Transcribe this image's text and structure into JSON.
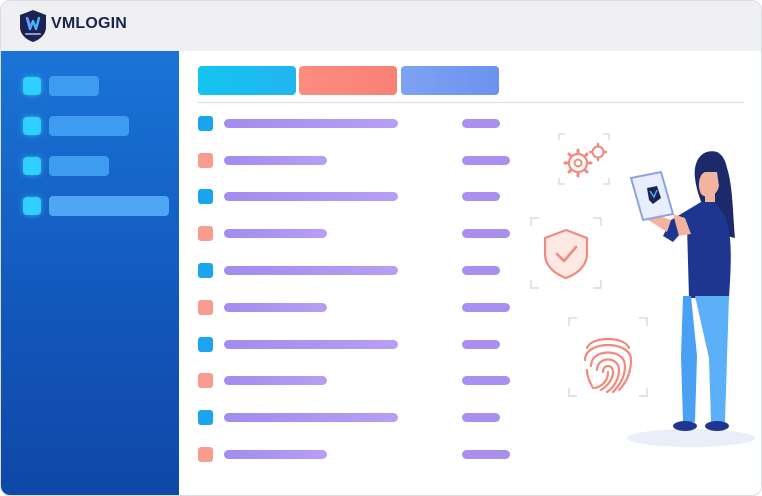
{
  "app": {
    "title": "VMLOGIN",
    "logo_icon": "shield-logo-icon"
  },
  "colors": {
    "sidebar": "#1466c9",
    "accent_cyan": "#17c0ee",
    "accent_coral": "#fa8a7c",
    "accent_periwinkle": "#7399f0",
    "placeholder_lavender": "#a98ff0"
  },
  "sidebar": {
    "items": [
      {
        "name": "sidebar-item-1"
      },
      {
        "name": "sidebar-item-2"
      },
      {
        "name": "sidebar-item-3"
      },
      {
        "name": "sidebar-item-4",
        "selected": true
      }
    ]
  },
  "tabs": [
    {
      "name": "tab-1",
      "color": "#17c0ee"
    },
    {
      "name": "tab-2",
      "color": "#fa8a7c"
    },
    {
      "name": "tab-3",
      "color": "#7399f0"
    }
  ],
  "rows": [
    {
      "marker": "blue"
    },
    {
      "marker": "coral"
    },
    {
      "marker": "blue"
    },
    {
      "marker": "coral"
    },
    {
      "marker": "blue"
    },
    {
      "marker": "coral"
    },
    {
      "marker": "blue"
    },
    {
      "marker": "coral"
    },
    {
      "marker": "blue"
    },
    {
      "marker": "coral"
    }
  ],
  "illustration": {
    "icons": [
      "gear-icon",
      "shield-check-icon",
      "fingerprint-icon",
      "tablet-icon"
    ],
    "figure": "woman-holding-tablet"
  }
}
